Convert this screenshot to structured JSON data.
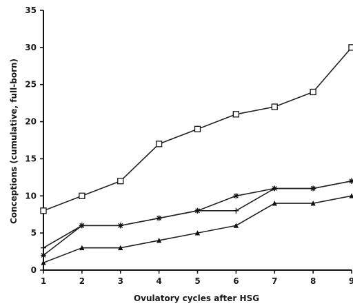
{
  "chart_data": {
    "type": "line",
    "title": "",
    "xlabel": "Ovulatory cycles after HSG",
    "ylabel": "Conceptions (cumulative, full-born)",
    "x": [
      1,
      2,
      3,
      4,
      5,
      6,
      7,
      8,
      9
    ],
    "xlim": [
      1,
      9
    ],
    "ylim": [
      0,
      35
    ],
    "x_ticks": [
      "1",
      "2",
      "3",
      "4",
      "5",
      "6",
      "7",
      "8",
      "9"
    ],
    "y_ticks": [
      "0",
      "5",
      "10",
      "15",
      "20",
      "25",
      "30",
      "35"
    ],
    "grid": false,
    "series": [
      {
        "marker": "square",
        "values": [
          8,
          10,
          12,
          17,
          19,
          21,
          22,
          24,
          30
        ]
      },
      {
        "marker": "star",
        "values": [
          2,
          6,
          6,
          7,
          8,
          10,
          11,
          11,
          12
        ]
      },
      {
        "marker": "plus",
        "values": [
          3,
          6,
          6,
          7,
          8,
          8,
          11,
          11,
          12
        ]
      },
      {
        "marker": "triangle",
        "values": [
          1,
          3,
          3,
          4,
          5,
          6,
          9,
          9,
          10
        ]
      }
    ]
  }
}
